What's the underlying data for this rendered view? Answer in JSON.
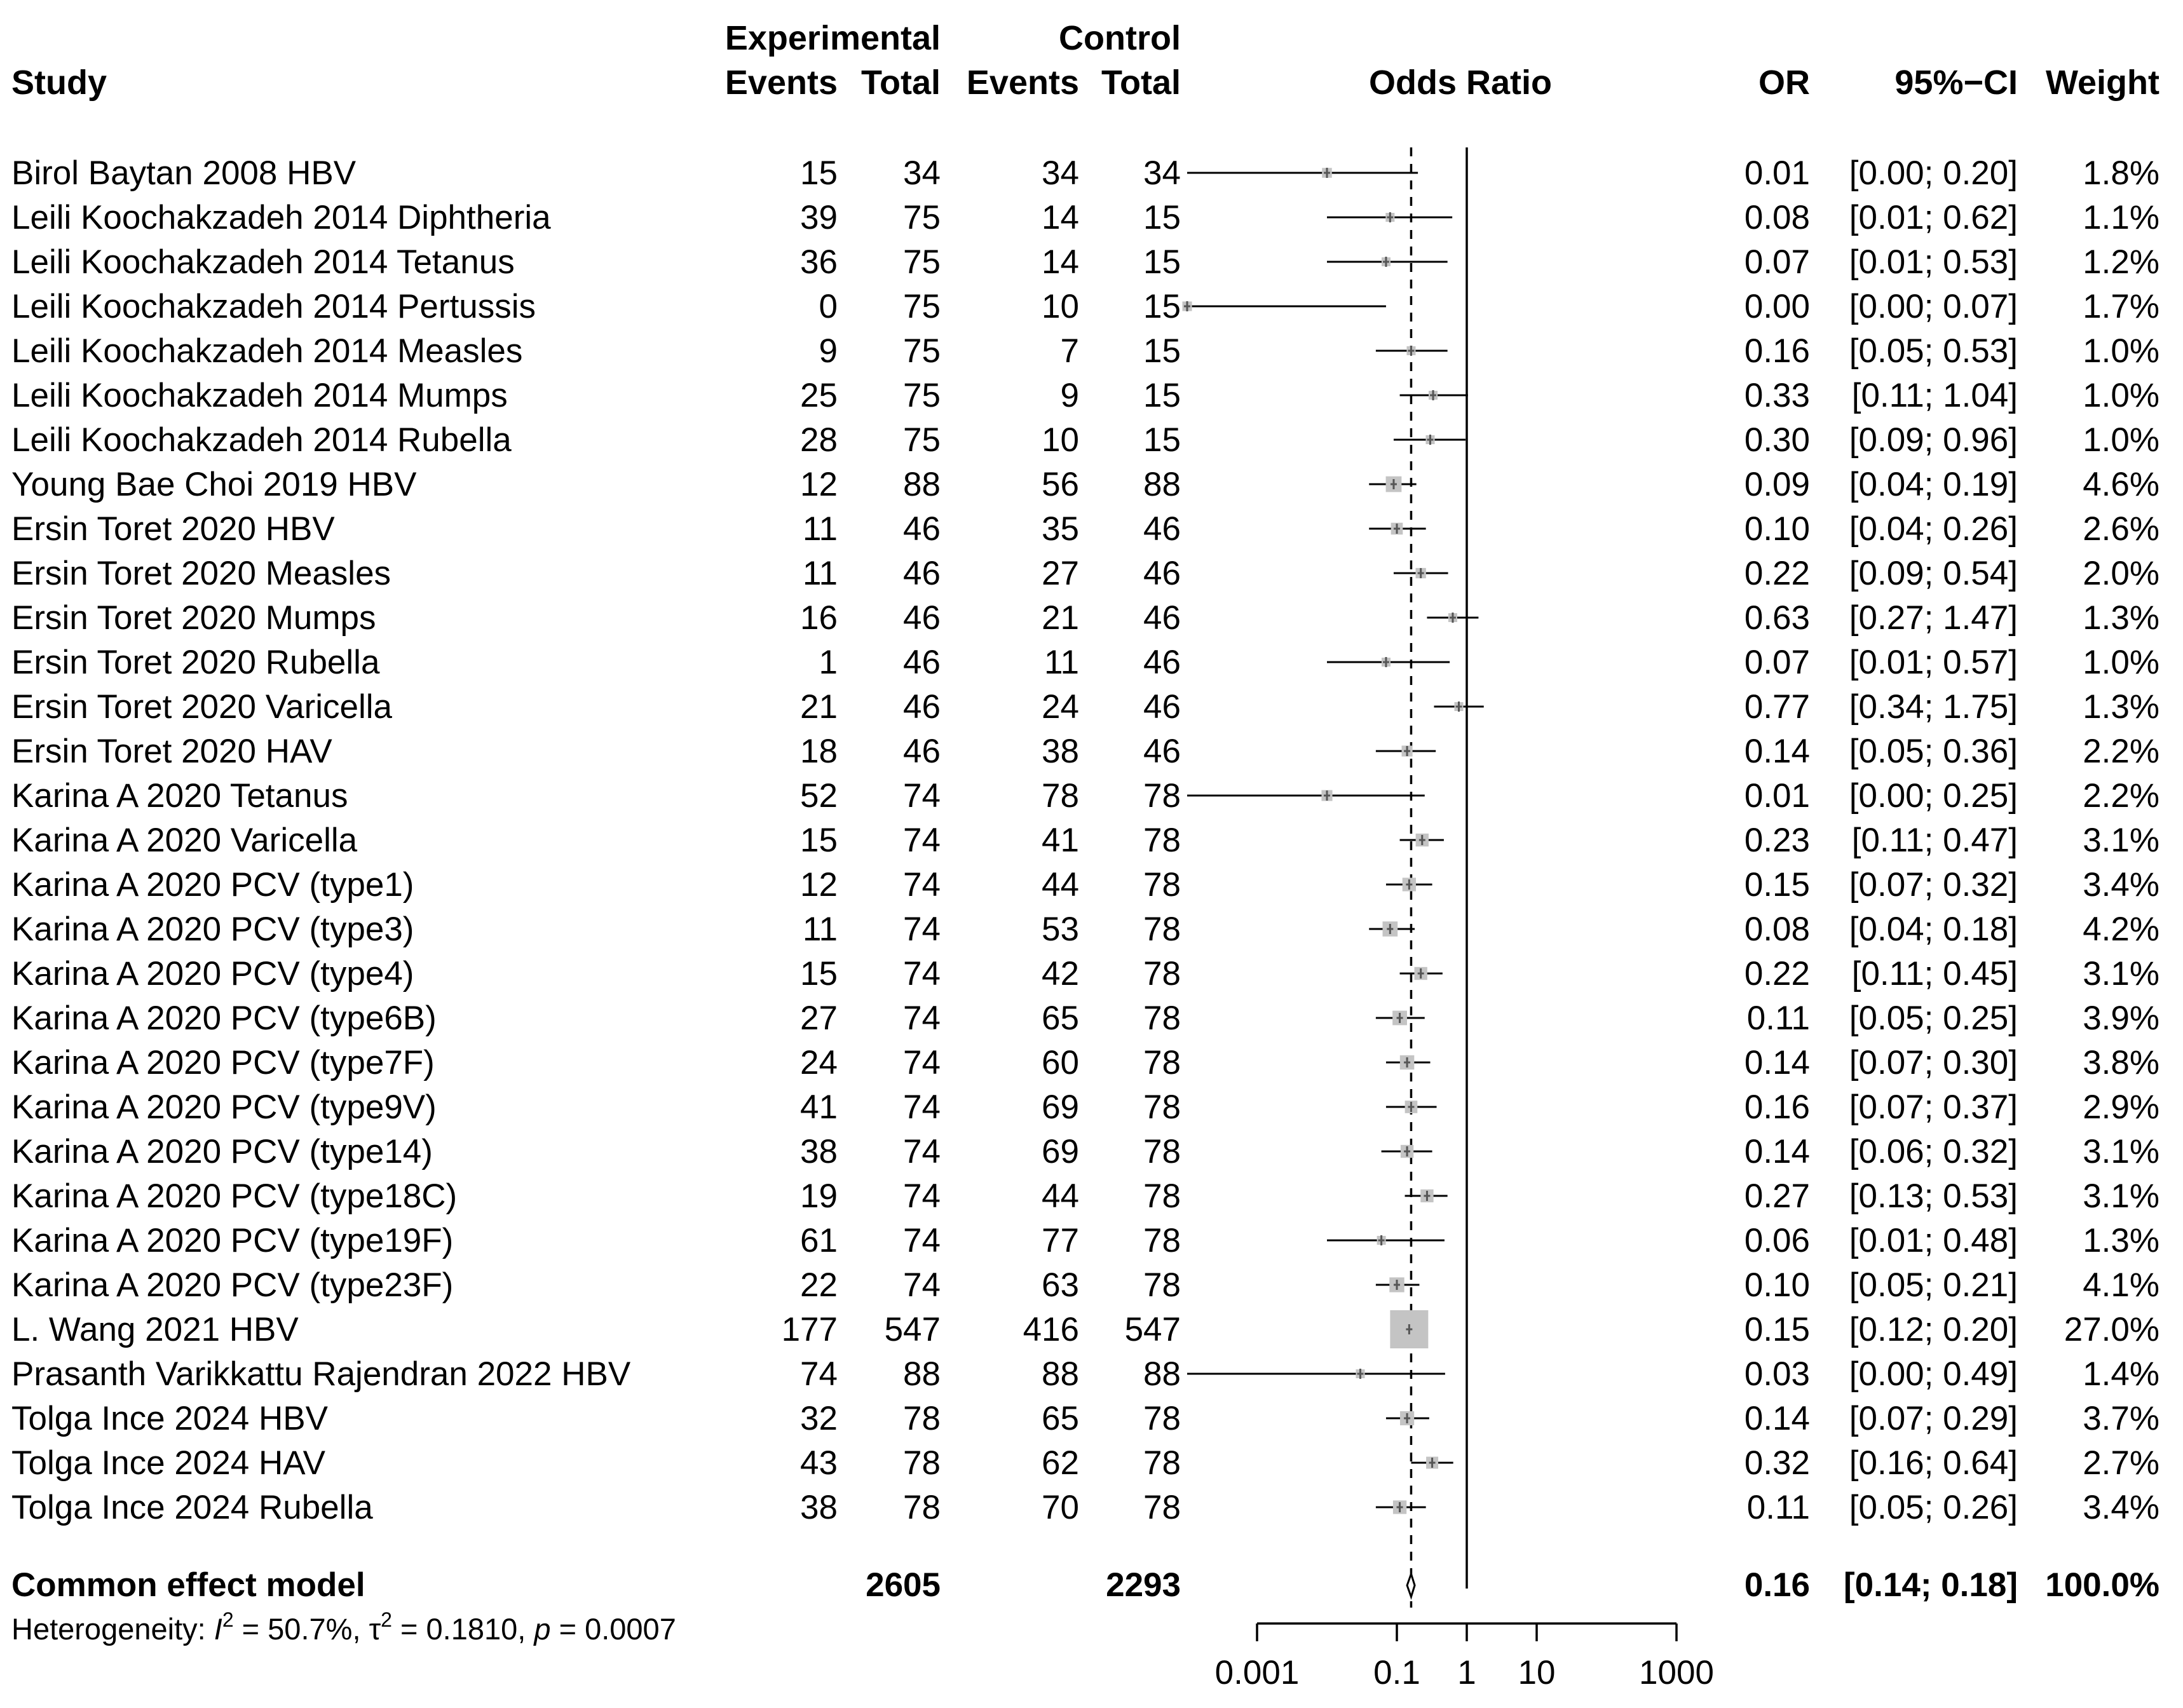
{
  "chart_data": {
    "type": "forest",
    "headers": {
      "study": "Study",
      "experimental_group": "Experimental",
      "control_group": "Control",
      "events": "Events",
      "total": "Total",
      "odds_ratio": "Odds Ratio",
      "or": "OR",
      "ci": "95%−CI",
      "weight": "Weight"
    },
    "studies": [
      {
        "name": "Birol Baytan 2008 HBV",
        "e_events": "15",
        "e_total": "34",
        "c_events": "34",
        "c_total": "34",
        "or": 0.01,
        "lower": 0.0,
        "upper": 0.2,
        "or_text": "0.01",
        "ci_text": "[0.00; 0.20]",
        "weight": 1.8,
        "weight_text": "1.8%"
      },
      {
        "name": "Leili Koochakzadeh 2014 Diphtheria",
        "e_events": "39",
        "e_total": "75",
        "c_events": "14",
        "c_total": "15",
        "or": 0.08,
        "lower": 0.01,
        "upper": 0.62,
        "or_text": "0.08",
        "ci_text": "[0.01; 0.62]",
        "weight": 1.1,
        "weight_text": "1.1%"
      },
      {
        "name": "Leili Koochakzadeh 2014 Tetanus",
        "e_events": "36",
        "e_total": "75",
        "c_events": "14",
        "c_total": "15",
        "or": 0.07,
        "lower": 0.01,
        "upper": 0.53,
        "or_text": "0.07",
        "ci_text": "[0.01; 0.53]",
        "weight": 1.2,
        "weight_text": "1.2%"
      },
      {
        "name": "Leili Koochakzadeh 2014 Pertussis",
        "e_events": "0",
        "e_total": "75",
        "c_events": "10",
        "c_total": "15",
        "or": 0.0,
        "lower": 0.0,
        "upper": 0.07,
        "or_text": "0.00",
        "ci_text": "[0.00; 0.07]",
        "weight": 1.7,
        "weight_text": "1.7%"
      },
      {
        "name": "Leili Koochakzadeh 2014 Measles",
        "e_events": "9",
        "e_total": "75",
        "c_events": "7",
        "c_total": "15",
        "or": 0.16,
        "lower": 0.05,
        "upper": 0.53,
        "or_text": "0.16",
        "ci_text": "[0.05; 0.53]",
        "weight": 1.0,
        "weight_text": "1.0%"
      },
      {
        "name": "Leili Koochakzadeh 2014 Mumps",
        "e_events": "25",
        "e_total": "75",
        "c_events": "9",
        "c_total": "15",
        "or": 0.33,
        "lower": 0.11,
        "upper": 1.04,
        "or_text": "0.33",
        "ci_text": "[0.11; 1.04]",
        "weight": 1.0,
        "weight_text": "1.0%"
      },
      {
        "name": "Leili Koochakzadeh 2014 Rubella",
        "e_events": "28",
        "e_total": "75",
        "c_events": "10",
        "c_total": "15",
        "or": 0.3,
        "lower": 0.09,
        "upper": 0.96,
        "or_text": "0.30",
        "ci_text": "[0.09; 0.96]",
        "weight": 1.0,
        "weight_text": "1.0%"
      },
      {
        "name": "Young Bae Choi 2019 HBV",
        "e_events": "12",
        "e_total": "88",
        "c_events": "56",
        "c_total": "88",
        "or": 0.09,
        "lower": 0.04,
        "upper": 0.19,
        "or_text": "0.09",
        "ci_text": "[0.04; 0.19]",
        "weight": 4.6,
        "weight_text": "4.6%"
      },
      {
        "name": "Ersin Toret 2020 HBV",
        "e_events": "11",
        "e_total": "46",
        "c_events": "35",
        "c_total": "46",
        "or": 0.1,
        "lower": 0.04,
        "upper": 0.26,
        "or_text": "0.10",
        "ci_text": "[0.04; 0.26]",
        "weight": 2.6,
        "weight_text": "2.6%"
      },
      {
        "name": "Ersin Toret 2020 Measles",
        "e_events": "11",
        "e_total": "46",
        "c_events": "27",
        "c_total": "46",
        "or": 0.22,
        "lower": 0.09,
        "upper": 0.54,
        "or_text": "0.22",
        "ci_text": "[0.09; 0.54]",
        "weight": 2.0,
        "weight_text": "2.0%"
      },
      {
        "name": "Ersin Toret 2020 Mumps",
        "e_events": "16",
        "e_total": "46",
        "c_events": "21",
        "c_total": "46",
        "or": 0.63,
        "lower": 0.27,
        "upper": 1.47,
        "or_text": "0.63",
        "ci_text": "[0.27; 1.47]",
        "weight": 1.3,
        "weight_text": "1.3%"
      },
      {
        "name": "Ersin Toret 2020 Rubella",
        "e_events": "1",
        "e_total": "46",
        "c_events": "11",
        "c_total": "46",
        "or": 0.07,
        "lower": 0.01,
        "upper": 0.57,
        "or_text": "0.07",
        "ci_text": "[0.01; 0.57]",
        "weight": 1.0,
        "weight_text": "1.0%"
      },
      {
        "name": "Ersin Toret 2020 Varicella",
        "e_events": "21",
        "e_total": "46",
        "c_events": "24",
        "c_total": "46",
        "or": 0.77,
        "lower": 0.34,
        "upper": 1.75,
        "or_text": "0.77",
        "ci_text": "[0.34; 1.75]",
        "weight": 1.3,
        "weight_text": "1.3%"
      },
      {
        "name": "Ersin Toret 2020 HAV",
        "e_events": "18",
        "e_total": "46",
        "c_events": "38",
        "c_total": "46",
        "or": 0.14,
        "lower": 0.05,
        "upper": 0.36,
        "or_text": "0.14",
        "ci_text": "[0.05; 0.36]",
        "weight": 2.2,
        "weight_text": "2.2%"
      },
      {
        "name": "Karina A 2020 Tetanus",
        "e_events": "52",
        "e_total": "74",
        "c_events": "78",
        "c_total": "78",
        "or": 0.01,
        "lower": 0.0,
        "upper": 0.25,
        "or_text": "0.01",
        "ci_text": "[0.00; 0.25]",
        "weight": 2.2,
        "weight_text": "2.2%"
      },
      {
        "name": "Karina A 2020 Varicella",
        "e_events": "15",
        "e_total": "74",
        "c_events": "41",
        "c_total": "78",
        "or": 0.23,
        "lower": 0.11,
        "upper": 0.47,
        "or_text": "0.23",
        "ci_text": "[0.11; 0.47]",
        "weight": 3.1,
        "weight_text": "3.1%"
      },
      {
        "name": "Karina A 2020 PCV (type1)",
        "e_events": "12",
        "e_total": "74",
        "c_events": "44",
        "c_total": "78",
        "or": 0.15,
        "lower": 0.07,
        "upper": 0.32,
        "or_text": "0.15",
        "ci_text": "[0.07; 0.32]",
        "weight": 3.4,
        "weight_text": "3.4%"
      },
      {
        "name": "Karina A 2020 PCV (type3)",
        "e_events": "11",
        "e_total": "74",
        "c_events": "53",
        "c_total": "78",
        "or": 0.08,
        "lower": 0.04,
        "upper": 0.18,
        "or_text": "0.08",
        "ci_text": "[0.04; 0.18]",
        "weight": 4.2,
        "weight_text": "4.2%"
      },
      {
        "name": "Karina A 2020 PCV (type4)",
        "e_events": "15",
        "e_total": "74",
        "c_events": "42",
        "c_total": "78",
        "or": 0.22,
        "lower": 0.11,
        "upper": 0.45,
        "or_text": "0.22",
        "ci_text": "[0.11; 0.45]",
        "weight": 3.1,
        "weight_text": "3.1%"
      },
      {
        "name": "Karina A 2020 PCV (type6B)",
        "e_events": "27",
        "e_total": "74",
        "c_events": "65",
        "c_total": "78",
        "or": 0.11,
        "lower": 0.05,
        "upper": 0.25,
        "or_text": "0.11",
        "ci_text": "[0.05; 0.25]",
        "weight": 3.9,
        "weight_text": "3.9%"
      },
      {
        "name": "Karina A 2020 PCV (type7F)",
        "e_events": "24",
        "e_total": "74",
        "c_events": "60",
        "c_total": "78",
        "or": 0.14,
        "lower": 0.07,
        "upper": 0.3,
        "or_text": "0.14",
        "ci_text": "[0.07; 0.30]",
        "weight": 3.8,
        "weight_text": "3.8%"
      },
      {
        "name": "Karina A 2020 PCV (type9V)",
        "e_events": "41",
        "e_total": "74",
        "c_events": "69",
        "c_total": "78",
        "or": 0.16,
        "lower": 0.07,
        "upper": 0.37,
        "or_text": "0.16",
        "ci_text": "[0.07; 0.37]",
        "weight": 2.9,
        "weight_text": "2.9%"
      },
      {
        "name": "Karina A 2020 PCV (type14)",
        "e_events": "38",
        "e_total": "74",
        "c_events": "69",
        "c_total": "78",
        "or": 0.14,
        "lower": 0.06,
        "upper": 0.32,
        "or_text": "0.14",
        "ci_text": "[0.06; 0.32]",
        "weight": 3.1,
        "weight_text": "3.1%"
      },
      {
        "name": "Karina A 2020 PCV (type18C)",
        "e_events": "19",
        "e_total": "74",
        "c_events": "44",
        "c_total": "78",
        "or": 0.27,
        "lower": 0.13,
        "upper": 0.53,
        "or_text": "0.27",
        "ci_text": "[0.13; 0.53]",
        "weight": 3.1,
        "weight_text": "3.1%"
      },
      {
        "name": "Karina A 2020 PCV (type19F)",
        "e_events": "61",
        "e_total": "74",
        "c_events": "77",
        "c_total": "78",
        "or": 0.06,
        "lower": 0.01,
        "upper": 0.48,
        "or_text": "0.06",
        "ci_text": "[0.01; 0.48]",
        "weight": 1.3,
        "weight_text": "1.3%"
      },
      {
        "name": "Karina A 2020 PCV (type23F)",
        "e_events": "22",
        "e_total": "74",
        "c_events": "63",
        "c_total": "78",
        "or": 0.1,
        "lower": 0.05,
        "upper": 0.21,
        "or_text": "0.10",
        "ci_text": "[0.05; 0.21]",
        "weight": 4.1,
        "weight_text": "4.1%"
      },
      {
        "name": "L. Wang 2021 HBV",
        "e_events": "177",
        "e_total": "547",
        "c_events": "416",
        "c_total": "547",
        "or": 0.15,
        "lower": 0.12,
        "upper": 0.2,
        "or_text": "0.15",
        "ci_text": "[0.12; 0.20]",
        "weight": 27.0,
        "weight_text": "27.0%"
      },
      {
        "name": "Prasanth Varikkattu Rajendran 2022 HBV",
        "e_events": "74",
        "e_total": "88",
        "c_events": "88",
        "c_total": "88",
        "or": 0.03,
        "lower": 0.0,
        "upper": 0.49,
        "or_text": "0.03",
        "ci_text": "[0.00; 0.49]",
        "weight": 1.4,
        "weight_text": "1.4%"
      },
      {
        "name": "Tolga Ince 2024 HBV",
        "e_events": "32",
        "e_total": "78",
        "c_events": "65",
        "c_total": "78",
        "or": 0.14,
        "lower": 0.07,
        "upper": 0.29,
        "or_text": "0.14",
        "ci_text": "[0.07; 0.29]",
        "weight": 3.7,
        "weight_text": "3.7%"
      },
      {
        "name": "Tolga Ince 2024 HAV",
        "e_events": "43",
        "e_total": "78",
        "c_events": "62",
        "c_total": "78",
        "or": 0.32,
        "lower": 0.16,
        "upper": 0.64,
        "or_text": "0.32",
        "ci_text": "[0.16; 0.64]",
        "weight": 2.7,
        "weight_text": "2.7%"
      },
      {
        "name": "Tolga Ince 2024 Rubella",
        "e_events": "38",
        "e_total": "78",
        "c_events": "70",
        "c_total": "78",
        "or": 0.11,
        "lower": 0.05,
        "upper": 0.26,
        "or_text": "0.11",
        "ci_text": "[0.05; 0.26]",
        "weight": 3.4,
        "weight_text": "3.4%"
      }
    ],
    "pooled": {
      "label": "Common effect model",
      "e_total": "2605",
      "c_total": "2293",
      "or": 0.16,
      "lower": 0.14,
      "upper": 0.18,
      "or_text": "0.16",
      "ci_text": "[0.14; 0.18]",
      "weight_text": "100.0%"
    },
    "heterogeneity": {
      "prefix": "Heterogeneity: ",
      "i2_symbol": "I",
      "i2_sup": "2",
      "i2_value": " = 50.7%, ",
      "tau_symbol": "τ",
      "tau_sup": "2",
      "tau_value": " = 0.1810, ",
      "p_symbol": "p",
      "p_value": " = 0.0007"
    },
    "axis": {
      "scale": "log10",
      "range": [
        0.001,
        1000
      ],
      "ticks": [
        0.001,
        0.1,
        1,
        10,
        1000
      ],
      "tick_labels": [
        "0.001",
        "0.1",
        "1",
        "10",
        "1000"
      ],
      "reference_line": 1,
      "summary_line": 0.16
    },
    "colors": {
      "box": "#c4c4c4",
      "line": "#000000",
      "point": "#555555"
    }
  }
}
